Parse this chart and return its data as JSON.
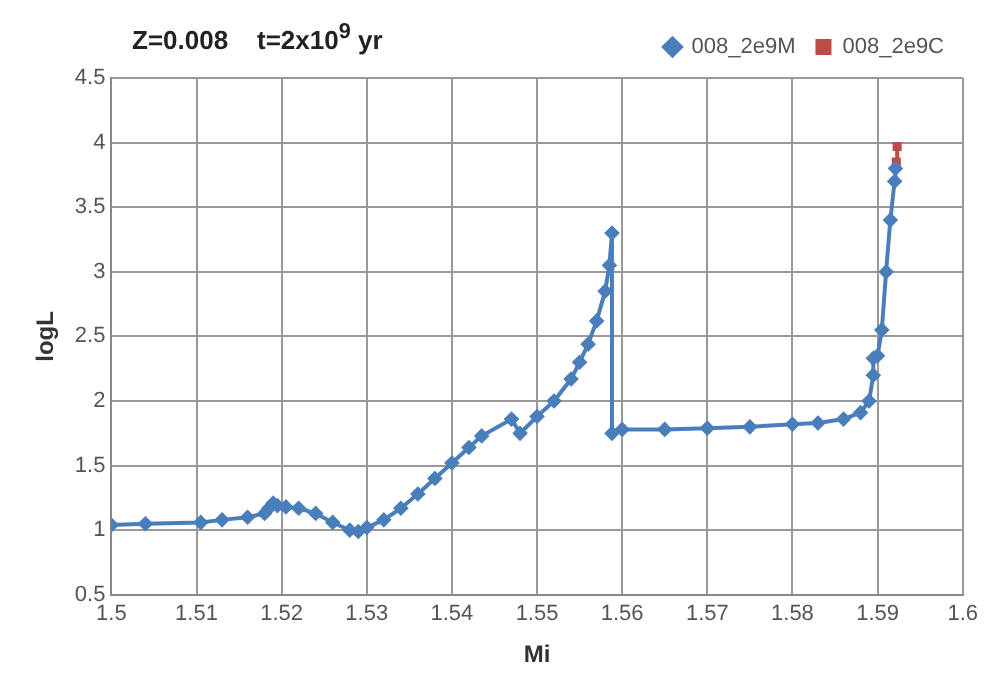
{
  "chart_data": {
    "type": "line",
    "title": "Z=0.008    t=2x10$^{9}$ yr",
    "xlabel": "Mi",
    "ylabel": "logL",
    "xlim": [
      1.5,
      1.6
    ],
    "xticks": [
      1.5,
      1.51,
      1.52,
      1.53,
      1.54,
      1.55,
      1.56,
      1.57,
      1.58,
      1.59,
      1.6
    ],
    "ylim": [
      0.5,
      4.5
    ],
    "yticks": [
      0.5,
      1,
      1.5,
      2,
      2.5,
      3,
      3.5,
      4,
      4.5
    ],
    "grid": true,
    "legend": "top right",
    "line_style": "solid",
    "series": [
      {
        "name": "008_2e9M",
        "color": "#4a7ebb",
        "marker": "diamond",
        "x": [
          1.5,
          1.504,
          1.5105,
          1.513,
          1.516,
          1.518,
          1.5185,
          1.519,
          1.5195,
          1.5205,
          1.522,
          1.524,
          1.526,
          1.528,
          1.529,
          1.53,
          1.532,
          1.534,
          1.536,
          1.538,
          1.54,
          1.542,
          1.5435,
          1.547,
          1.548,
          1.55,
          1.552,
          1.554,
          1.555,
          1.556,
          1.557,
          1.558,
          1.5585,
          1.5588,
          1.5588,
          1.56,
          1.565,
          1.57,
          1.575,
          1.58,
          1.583,
          1.586,
          1.588,
          1.589,
          1.5895,
          1.5895,
          1.59,
          1.5905,
          1.591,
          1.5915,
          1.592,
          1.5921
        ],
        "values": [
          1.04,
          1.05,
          1.06,
          1.08,
          1.1,
          1.13,
          1.17,
          1.21,
          1.19,
          1.18,
          1.17,
          1.13,
          1.06,
          1.0,
          0.99,
          1.02,
          1.08,
          1.17,
          1.28,
          1.4,
          1.52,
          1.64,
          1.73,
          1.86,
          1.75,
          1.88,
          2.0,
          2.17,
          2.3,
          2.44,
          2.62,
          2.85,
          3.05,
          3.3,
          1.75,
          1.78,
          1.78,
          1.79,
          1.8,
          1.82,
          1.83,
          1.86,
          1.91,
          2.0,
          2.2,
          2.33,
          2.35,
          2.55,
          3.0,
          3.4,
          3.7,
          3.8
        ]
      },
      {
        "name": "008_2e9C",
        "color": "#be4b48",
        "marker": "square",
        "x": [
          1.5922,
          1.5923
        ],
        "values": [
          3.85,
          3.97
        ]
      }
    ]
  }
}
